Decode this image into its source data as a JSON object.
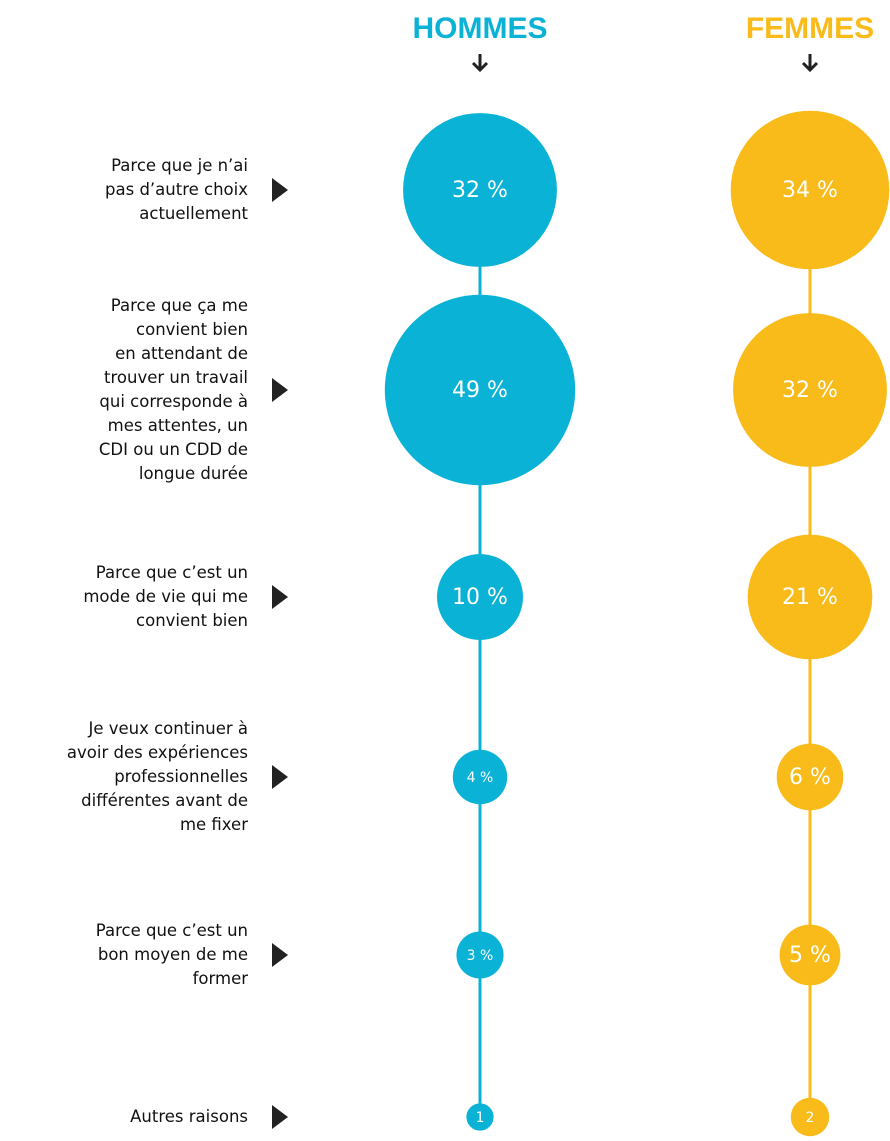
{
  "chart_data": {
    "type": "bubble",
    "categories": [
      "Parce que je n’ai\npas d’autre choix\nactuellement",
      "Parce que ça me\nconvient bien\nen attendant de\ntrouver un travail\nqui corresponde à\nmes attentes, un\nCDI ou un CDD de\nlongue durée",
      "Parce que c’est un\nmode de vie qui me\nconvient bien",
      "Je veux continuer à\navoir des expériences\nprofessionnelles\ndifférentes avant de\nme fixer",
      "Parce que c’est un\nbon moyen de me\nformer",
      "Autres raisons"
    ],
    "series": [
      {
        "name": "HOMMES",
        "color": "#0ab2d6",
        "values": [
          32,
          49,
          10,
          4,
          3,
          1
        ],
        "value_labels": [
          "32 %",
          "49 %",
          "10 %",
          "4 %",
          "3 %",
          "1"
        ]
      },
      {
        "name": "FEMMES",
        "color": "#f8bb1a",
        "values": [
          34,
          32,
          21,
          6,
          5,
          2
        ],
        "value_labels": [
          "34 %",
          "32 %",
          "21 %",
          "6 %",
          "5 %",
          "2"
        ]
      }
    ]
  }
}
